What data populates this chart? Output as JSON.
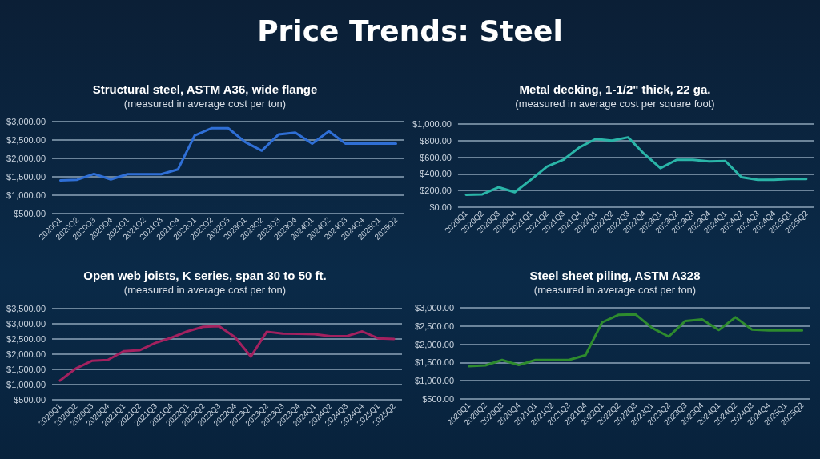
{
  "chart_data": [
    {
      "type": "line",
      "annotations": [
        "Price Trends: Steel"
      ],
      "title": "Structural steel, ASTM A36, wide flange",
      "subtitle": "(measured in average cost per ton)",
      "categories": [
        "2020Q1",
        "2020Q2",
        "2020Q3",
        "2020Q4",
        "2021Q1",
        "2021Q2",
        "2021Q3",
        "2021Q4",
        "2022Q1",
        "2022Q2",
        "2022Q3",
        "2023Q1",
        "2023Q2",
        "2023Q3",
        "2023Q4",
        "2024Q1",
        "2024Q2",
        "2024Q3",
        "2024Q4",
        "2025Q1",
        "2025Q2"
      ],
      "values": [
        1400,
        1420,
        1580,
        1430,
        1570,
        1570,
        1570,
        1700,
        2620,
        2820,
        2820,
        2450,
        2210,
        2650,
        2700,
        2400,
        2740,
        2400,
        2400,
        2400,
        2400
      ],
      "color": "#2f6fd6",
      "ylim": [
        500,
        3000
      ],
      "yticks": [
        {
          "value": 500,
          "label": "$500.00"
        },
        {
          "value": 1000,
          "label": "$1,000.00"
        },
        {
          "value": 1500,
          "label": "$1,500.00"
        },
        {
          "value": 2000,
          "label": "$2,000.00"
        },
        {
          "value": 2500,
          "label": "$2,500.00"
        },
        {
          "value": 3000,
          "label": "$3,000.00"
        }
      ],
      "grid": "y"
    },
    {
      "type": "line",
      "title": "Metal decking, 1-1/2\" thick, 22 ga.",
      "subtitle": "(measured in average cost per square foot)",
      "categories": [
        "2020Q1",
        "2020Q2",
        "2020Q3",
        "2020Q4",
        "2021Q1",
        "2021Q2",
        "2021Q3",
        "2021Q4",
        "2022Q1",
        "2022Q2",
        "2022Q3",
        "2022Q4",
        "2023Q1",
        "2023Q2",
        "2023Q3",
        "2023Q4",
        "2024Q1",
        "2024Q2",
        "2024Q3",
        "2024Q4",
        "2025Q1",
        "2025Q2"
      ],
      "values": [
        150,
        155,
        240,
        180,
        330,
        490,
        570,
        720,
        820,
        800,
        840,
        640,
        470,
        570,
        570,
        550,
        555,
        360,
        330,
        330,
        340,
        340
      ],
      "color": "#2ab5a8",
      "ylim": [
        0,
        1000
      ],
      "yticks": [
        {
          "value": 0,
          "label": "$0.00"
        },
        {
          "value": 200,
          "label": "$200.00"
        },
        {
          "value": 400,
          "label": "$400.00"
        },
        {
          "value": 600,
          "label": "$600.00"
        },
        {
          "value": 800,
          "label": "$800.00"
        },
        {
          "value": 1000,
          "label": "$1,000.00"
        }
      ],
      "grid": "y"
    },
    {
      "type": "line",
      "title": "Open web joists, K series, span 30 to 50 ft.",
      "subtitle": "(measured in average cost per ton)",
      "categories": [
        "2020Q1",
        "2020Q2",
        "2020Q3",
        "2020Q4",
        "2021Q1",
        "2021Q2",
        "2021Q3",
        "2021Q4",
        "2022Q1",
        "2022Q2",
        "2022Q3",
        "2022Q4",
        "2023Q1",
        "2023Q2",
        "2023Q3",
        "2023Q4",
        "2024Q1",
        "2024Q2",
        "2024Q3",
        "2024Q4",
        "2025Q1",
        "2025Q2"
      ],
      "values": [
        1130,
        1530,
        1780,
        1810,
        2100,
        2130,
        2370,
        2540,
        2750,
        2900,
        2920,
        2560,
        1920,
        2740,
        2680,
        2670,
        2660,
        2590,
        2590,
        2750,
        2520,
        2500
      ],
      "color": "#a3215f",
      "ylim": [
        500,
        3500
      ],
      "yticks": [
        {
          "value": 500,
          "label": "$500.00"
        },
        {
          "value": 1000,
          "label": "$1,000.00"
        },
        {
          "value": 1500,
          "label": "$1,500.00"
        },
        {
          "value": 2000,
          "label": "$2,000.00"
        },
        {
          "value": 2500,
          "label": "$2,500.00"
        },
        {
          "value": 3000,
          "label": "$3,000.00"
        },
        {
          "value": 3500,
          "label": "$3,500.00"
        }
      ],
      "grid": "y"
    },
    {
      "type": "line",
      "title": "Steel sheet piling, ASTM A328",
      "subtitle": "(measured in average cost per ton)",
      "categories": [
        "2020Q1",
        "2020Q2",
        "2020Q3",
        "2020Q4",
        "2021Q1",
        "2021Q2",
        "2021Q3",
        "2021Q4",
        "2022Q1",
        "2022Q2",
        "2022Q3",
        "2023Q1",
        "2023Q2",
        "2023Q3",
        "2023Q4",
        "2024Q1",
        "2024Q2",
        "2024Q3",
        "2024Q4",
        "2025Q1",
        "2025Q2"
      ],
      "values": [
        1400,
        1420,
        1570,
        1430,
        1570,
        1570,
        1570,
        1700,
        2600,
        2810,
        2820,
        2450,
        2210,
        2640,
        2680,
        2390,
        2740,
        2400,
        2380,
        2380,
        2380
      ],
      "color": "#2e8b2e",
      "ylim": [
        500,
        3000
      ],
      "yticks": [
        {
          "value": 500,
          "label": "$500.00"
        },
        {
          "value": 1000,
          "label": "$1,000.00"
        },
        {
          "value": 1500,
          "label": "$1,500.00"
        },
        {
          "value": 2000,
          "label": "$2,000.00"
        },
        {
          "value": 2500,
          "label": "$2,500.00"
        },
        {
          "value": 3000,
          "label": "$3,000.00"
        }
      ],
      "grid": "y"
    }
  ]
}
